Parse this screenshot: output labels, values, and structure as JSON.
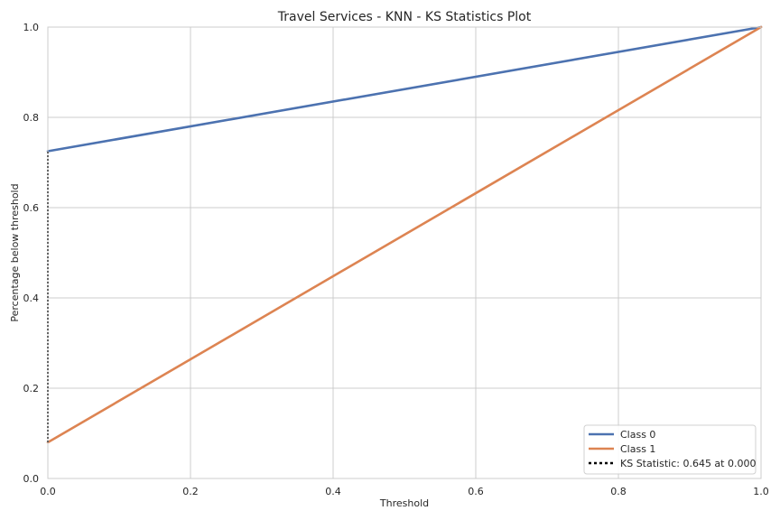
{
  "chart_data": {
    "type": "line",
    "title": "Travel Services - KNN - KS Statistics Plot",
    "xlabel": "Threshold",
    "ylabel": "Percentage below threshold",
    "xlim": [
      0,
      1
    ],
    "ylim": [
      0,
      1
    ],
    "xticks": [
      "0.0",
      "0.2",
      "0.4",
      "0.6",
      "0.8",
      "1.0"
    ],
    "yticks": [
      "0.0",
      "0.2",
      "0.4",
      "0.6",
      "0.8",
      "1.0"
    ],
    "grid": true,
    "legend_position": "lower-right",
    "series": [
      {
        "name": "Class 0",
        "color": "#4c72b0",
        "style": "solid",
        "x": [
          0.0,
          1.0
        ],
        "y": [
          0.725,
          1.0
        ]
      },
      {
        "name": "Class 1",
        "color": "#dd8452",
        "style": "solid",
        "x": [
          0.0,
          1.0
        ],
        "y": [
          0.08,
          1.0
        ]
      },
      {
        "name": "KS Statistic: 0.645 at 0.000",
        "color": "#000000",
        "style": "dotted",
        "x": [
          0.0,
          0.0
        ],
        "y": [
          0.08,
          0.725
        ]
      }
    ]
  }
}
